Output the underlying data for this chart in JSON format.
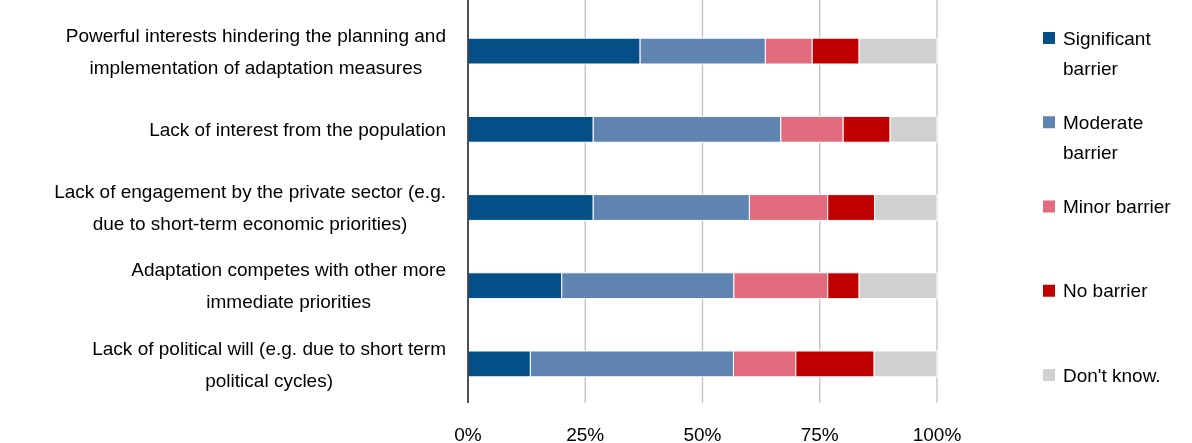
{
  "chart_data": {
    "type": "bar",
    "orientation": "horizontal",
    "stacked": true,
    "categories": [
      "Powerful interests hindering the planning and implementation of adaptation measures",
      "Lack of interest from the population",
      "Lack of engagement by the private sector (e.g. due to short-term economic priorities)",
      "Adaptation competes with other more immediate priorities",
      "Lack of political will (e.g. due to short term political cycles)"
    ],
    "series": [
      {
        "name": "Significant barrier",
        "color": "#044f88",
        "values": [
          36.7,
          26.7,
          26.7,
          20,
          13.3
        ]
      },
      {
        "name": "Moderate barrier",
        "color": "#5f84b2",
        "values": [
          26.7,
          40,
          33.3,
          36.7,
          43.3
        ]
      },
      {
        "name": "Minor barrier",
        "color": "#e26b7e",
        "values": [
          10,
          13.3,
          16.7,
          20,
          13.3
        ]
      },
      {
        "name": "No barrier",
        "color": "#c00000",
        "values": [
          10,
          10,
          10,
          6.7,
          16.7
        ]
      },
      {
        "name": "Don't know.",
        "color": "#d0d0d0",
        "values": [
          16.6,
          10,
          13.3,
          16.6,
          13.4
        ]
      }
    ],
    "xlim": [
      0,
      100
    ],
    "xticks": [
      {
        "value": 0,
        "label": "0%"
      },
      {
        "value": 25,
        "label": "25%"
      },
      {
        "value": 50,
        "label": "50%"
      },
      {
        "value": 75,
        "label": "75%"
      },
      {
        "value": 100,
        "label": "100%"
      }
    ],
    "grid": "x",
    "legend": "right"
  }
}
